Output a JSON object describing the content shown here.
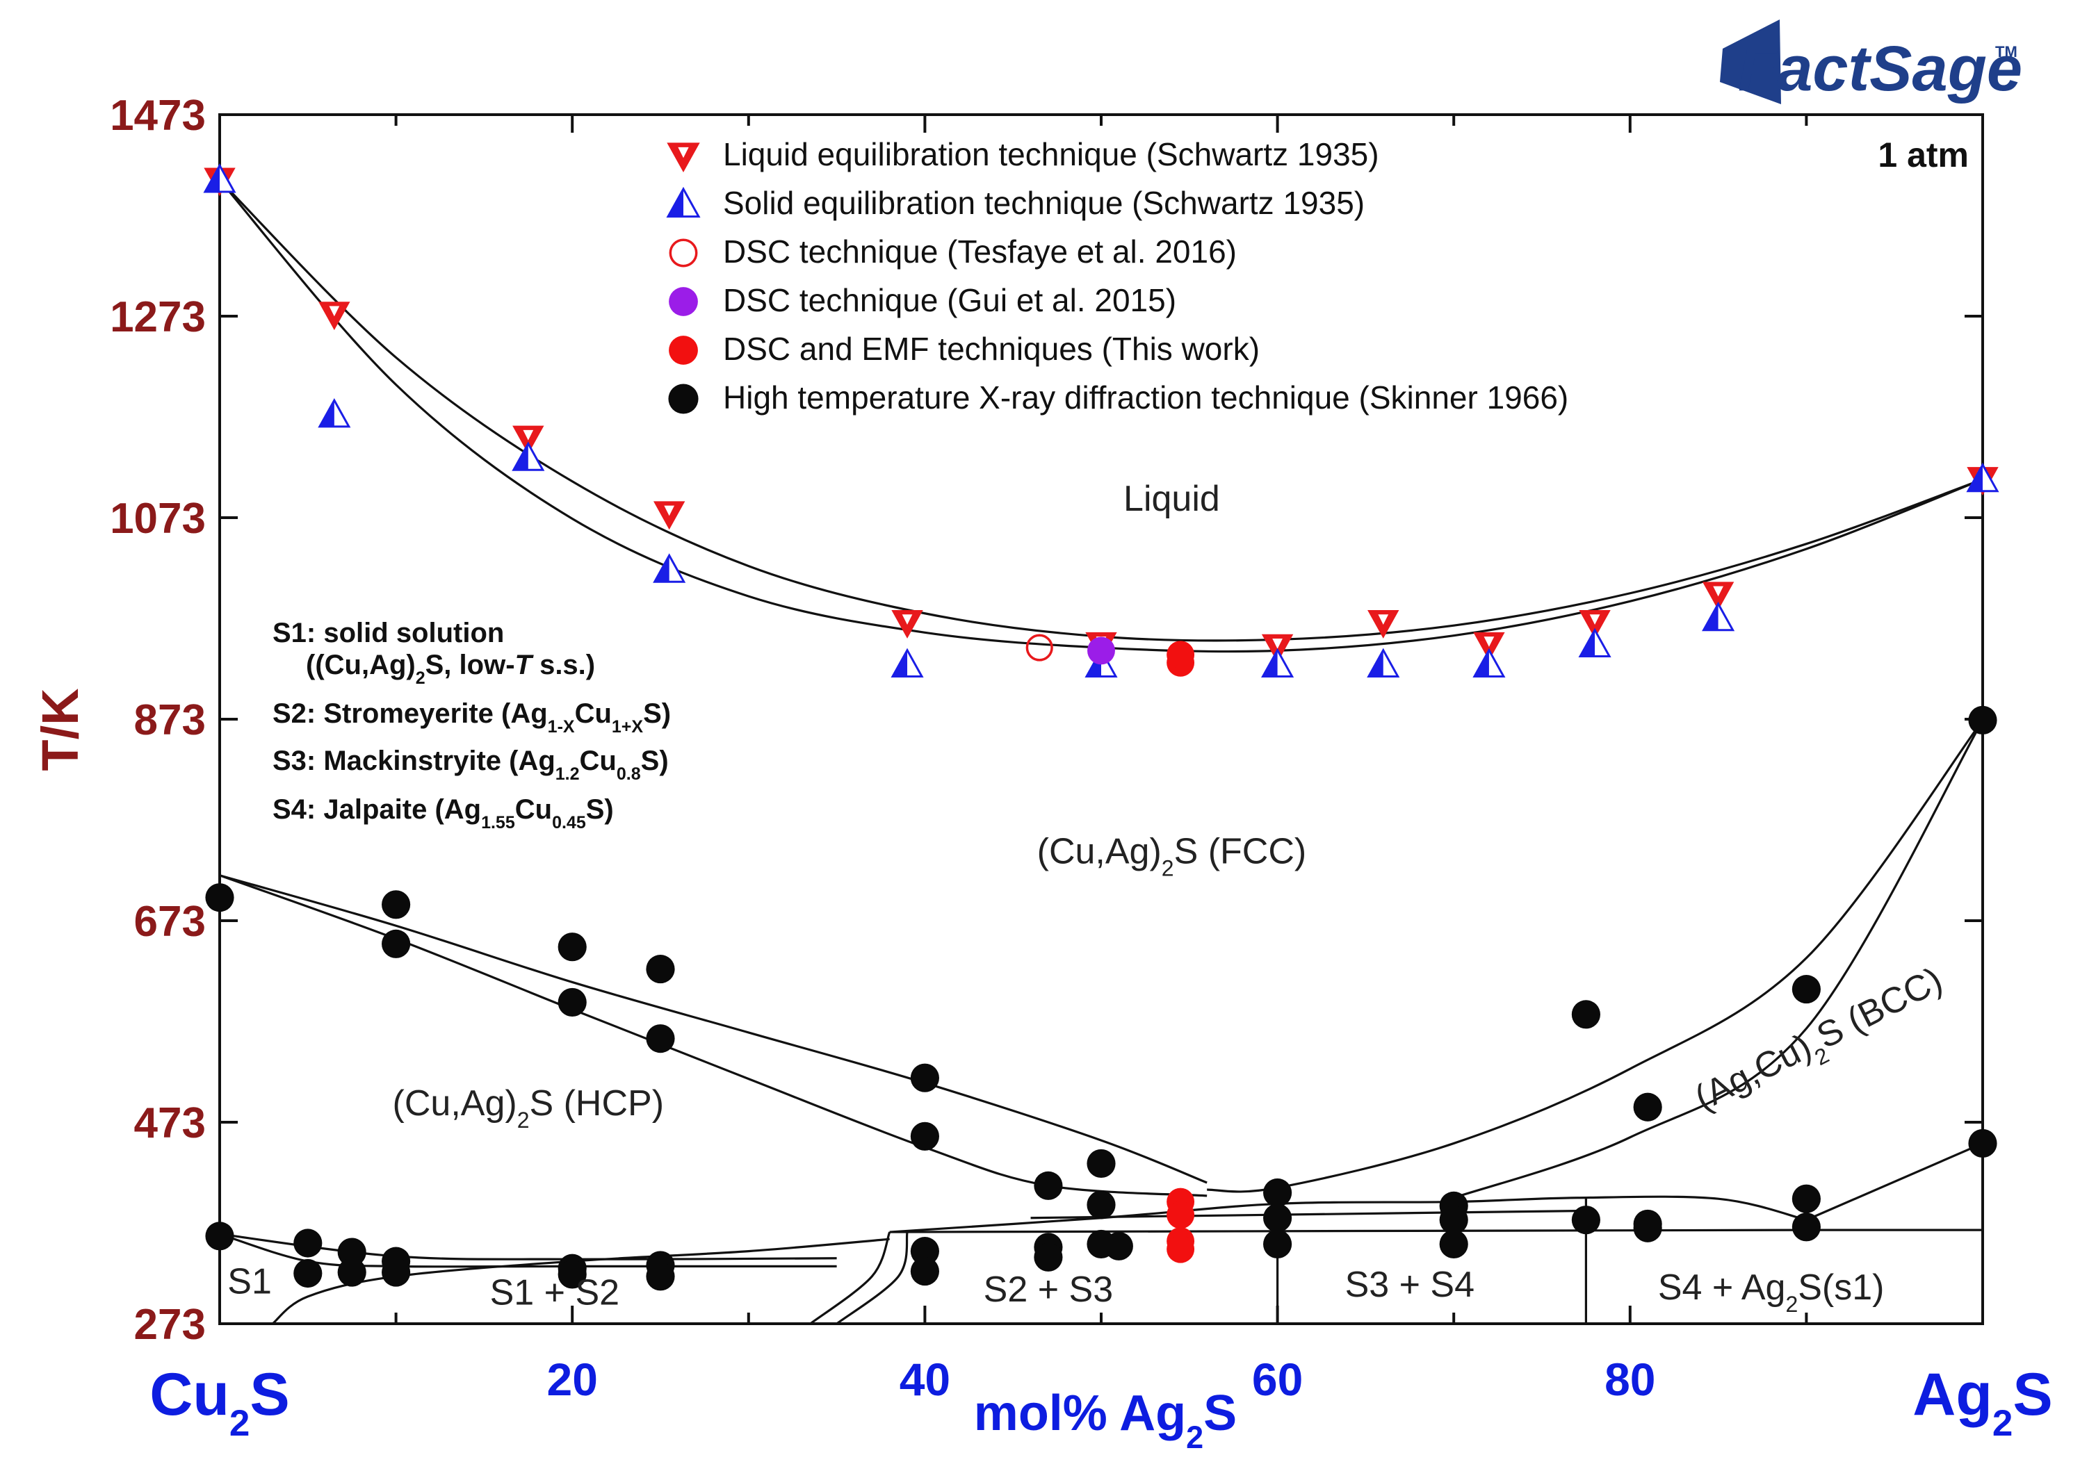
{
  "chart_data": {
    "type": "phase-diagram",
    "pressure": "1 atm",
    "logo": {
      "text": "FactSage",
      "mark": "TM"
    },
    "ylabel": "T/K",
    "ylim": [
      273,
      1473
    ],
    "yticks": [
      273,
      473,
      673,
      873,
      1073,
      1273,
      1473
    ],
    "ytick_labels": [
      "273",
      "473",
      "673",
      "873",
      "1073",
      "1273",
      "1473"
    ],
    "xlim": [
      0,
      100
    ],
    "xtick_labels": [
      {
        "x": 20,
        "label": "20"
      },
      {
        "x": 40,
        "label": "40"
      },
      {
        "x": 60,
        "label": "60"
      },
      {
        "x": 80,
        "label": "80"
      }
    ],
    "xlabel": {
      "prefix": "mol% Ag",
      "sub": "2",
      "suffix": "S"
    },
    "x_left_end": {
      "prefix": "Cu",
      "sub": "2",
      "suffix": "S"
    },
    "x_right_end": {
      "prefix": "Ag",
      "sub": "2",
      "suffix": "S"
    },
    "legend": [
      {
        "marker": "triangle-down-red",
        "label": "Liquid equilibration technique (Schwartz 1935)"
      },
      {
        "marker": "triangle-up-blue",
        "label": "Solid equilibration technique (Schwartz 1935)"
      },
      {
        "marker": "circle-open-red",
        "label": "DSC technique (Tesfaye et al. 2016)"
      },
      {
        "marker": "circle-purple",
        "label": "DSC technique (Gui et al. 2015)"
      },
      {
        "marker": "circle-red",
        "label": "DSC and EMF techniques (This work)"
      },
      {
        "marker": "circle-black",
        "label": "High temperature X-ray diffraction technique (Skinner 1966)"
      }
    ],
    "notes": [
      {
        "parts": [
          {
            "t": "S1: solid solution"
          }
        ]
      },
      {
        "parts": [
          {
            "t": "((Cu,Ag)"
          },
          {
            "t": "2",
            "sub": true
          },
          {
            "t": "S, low-"
          },
          {
            "t": "T",
            "italic": true
          },
          {
            "t": " s.s.)"
          }
        ]
      },
      {
        "parts": [
          {
            "t": "S2: Stromeyerite (Ag"
          },
          {
            "t": "1-X",
            "sub": true
          },
          {
            "t": "Cu"
          },
          {
            "t": "1+X",
            "sub": true
          },
          {
            "t": "S)"
          }
        ]
      },
      {
        "parts": [
          {
            "t": "S3: Mackinstryite (Ag"
          },
          {
            "t": "1.2",
            "sub": true
          },
          {
            "t": "Cu"
          },
          {
            "t": "0.8",
            "sub": true
          },
          {
            "t": "S)"
          }
        ]
      },
      {
        "parts": [
          {
            "t": "S4: Jalpaite (Ag"
          },
          {
            "t": "1.55",
            "sub": true
          },
          {
            "t": "Cu"
          },
          {
            "t": "0.45",
            "sub": true
          },
          {
            "t": "S)"
          }
        ]
      }
    ],
    "regions": [
      {
        "x": 54,
        "y": 1080,
        "parts": [
          {
            "t": "Liquid"
          }
        ]
      },
      {
        "x": 54,
        "y": 730,
        "parts": [
          {
            "t": "(Cu,Ag)"
          },
          {
            "t": "2",
            "sub": true
          },
          {
            "t": "S (FCC)"
          }
        ]
      },
      {
        "x": 17.5,
        "y": 480,
        "parts": [
          {
            "t": "(Cu,Ag)"
          },
          {
            "t": "2",
            "sub": true
          },
          {
            "t": "S (HCP)"
          }
        ]
      },
      {
        "x": 91,
        "y": 545,
        "rotate": -27,
        "parts": [
          {
            "t": "(Ag,Cu)"
          },
          {
            "t": "2",
            "sub": true
          },
          {
            "t": "S (BCC)"
          }
        ]
      },
      {
        "x": 1.7,
        "y": 303,
        "parts": [
          {
            "t": "S1"
          }
        ]
      },
      {
        "x": 19,
        "y": 292,
        "parts": [
          {
            "t": "S1 + S2"
          }
        ]
      },
      {
        "x": 47,
        "y": 295,
        "parts": [
          {
            "t": "S2 + S3"
          }
        ]
      },
      {
        "x": 67.5,
        "y": 300,
        "parts": [
          {
            "t": "S3 + S4"
          }
        ]
      },
      {
        "x": 88,
        "y": 297,
        "parts": [
          {
            "t": "S4 + Ag"
          },
          {
            "t": "2",
            "sub": true
          },
          {
            "t": "S(s1)"
          }
        ]
      }
    ],
    "series": [
      {
        "name": "Liquid equilibration technique (Schwartz 1935)",
        "marker": "triangle-down-red",
        "points": [
          [
            0,
            1408
          ],
          [
            6.5,
            1275
          ],
          [
            17.5,
            1152
          ],
          [
            25.5,
            1077
          ],
          [
            39,
            969
          ],
          [
            50,
            947
          ],
          [
            60,
            945
          ],
          [
            66,
            969
          ],
          [
            72,
            947
          ],
          [
            78,
            969
          ],
          [
            85,
            997
          ],
          [
            100,
            1111
          ]
        ]
      },
      {
        "name": "Solid equilibration technique (Schwartz 1935)",
        "marker": "triangle-up-blue",
        "points": [
          [
            0,
            1408
          ],
          [
            6.5,
            1175
          ],
          [
            17.5,
            1132
          ],
          [
            25.5,
            1021
          ],
          [
            39,
            927
          ],
          [
            50,
            927
          ],
          [
            60,
            927
          ],
          [
            66,
            927
          ],
          [
            72,
            927
          ],
          [
            78,
            947
          ],
          [
            85,
            973
          ],
          [
            100,
            1111
          ]
        ]
      },
      {
        "name": "DSC technique (Tesfaye et al. 2016)",
        "marker": "circle-open-red",
        "points": [
          [
            46.5,
            944
          ]
        ]
      },
      {
        "name": "DSC technique (Gui et al. 2015)",
        "marker": "circle-purple",
        "points": [
          [
            50,
            941
          ]
        ]
      },
      {
        "name": "DSC and EMF techniques (This work)",
        "marker": "circle-red",
        "points": [
          [
            54.5,
            929
          ],
          [
            54.5,
            937
          ],
          [
            54.5,
            394
          ],
          [
            54.5,
            381
          ],
          [
            54.5,
            355
          ],
          [
            54.5,
            347
          ]
        ]
      },
      {
        "name": "High temperature X-ray diffraction technique (Skinner 1966)",
        "marker": "circle-black",
        "points": [
          [
            0,
            696
          ],
          [
            0,
            360
          ],
          [
            5,
            353
          ],
          [
            5,
            323
          ],
          [
            7.5,
            344
          ],
          [
            7.5,
            324
          ],
          [
            10,
            689
          ],
          [
            10,
            650
          ],
          [
            10,
            335
          ],
          [
            10,
            324
          ],
          [
            20,
            647
          ],
          [
            20,
            592
          ],
          [
            20,
            328
          ],
          [
            20,
            322
          ],
          [
            25,
            625
          ],
          [
            25,
            556
          ],
          [
            25,
            331
          ],
          [
            25,
            320
          ],
          [
            40,
            517
          ],
          [
            40,
            459
          ],
          [
            40,
            345
          ],
          [
            40,
            325
          ],
          [
            47,
            410
          ],
          [
            47,
            349
          ],
          [
            47,
            339
          ],
          [
            50,
            432
          ],
          [
            50,
            391
          ],
          [
            50,
            352
          ],
          [
            51,
            350
          ],
          [
            60,
            403
          ],
          [
            60,
            378
          ],
          [
            60,
            352
          ],
          [
            70,
            390
          ],
          [
            70,
            376
          ],
          [
            70,
            352
          ],
          [
            77.5,
            580
          ],
          [
            77.5,
            376
          ],
          [
            81,
            488
          ],
          [
            81,
            372
          ],
          [
            81,
            368
          ],
          [
            90,
            605
          ],
          [
            90,
            397
          ],
          [
            90,
            369
          ],
          [
            100,
            872
          ],
          [
            100,
            452
          ]
        ]
      }
    ],
    "phase_lines": [
      {
        "points": [
          [
            0,
            1408
          ],
          [
            10,
            1232
          ],
          [
            20,
            1109
          ],
          [
            30,
            1025
          ],
          [
            40,
            978
          ],
          [
            50,
            955
          ],
          [
            60,
            952
          ],
          [
            70,
            966
          ],
          [
            80,
            998
          ],
          [
            90,
            1047
          ],
          [
            100,
            1111
          ]
        ]
      },
      {
        "points": [
          [
            0,
            1408
          ],
          [
            10,
            1205
          ],
          [
            20,
            1072
          ],
          [
            30,
            995
          ],
          [
            40,
            959
          ],
          [
            50,
            944
          ],
          [
            60,
            941
          ],
          [
            70,
            956
          ],
          [
            80,
            990
          ],
          [
            90,
            1042
          ],
          [
            100,
            1111
          ]
        ]
      },
      {
        "points": [
          [
            0,
            718
          ],
          [
            10,
            668
          ],
          [
            20,
            612
          ],
          [
            30,
            562
          ],
          [
            40,
            512
          ],
          [
            50,
            455
          ],
          [
            56,
            413
          ]
        ]
      },
      {
        "points": [
          [
            0,
            718
          ],
          [
            10,
            655
          ],
          [
            20,
            585
          ],
          [
            30,
            516
          ],
          [
            40,
            448
          ],
          [
            47,
            410
          ],
          [
            56,
            400
          ]
        ]
      },
      {
        "points": [
          [
            56,
            406
          ],
          [
            60,
            408
          ],
          [
            70,
            452
          ],
          [
            80,
            526
          ],
          [
            90,
            636
          ],
          [
            100,
            872
          ]
        ]
      },
      {
        "points": [
          [
            70,
            398
          ],
          [
            80,
            458
          ],
          [
            90,
            566
          ],
          [
            100,
            872
          ]
        ]
      },
      {
        "points": [
          [
            90,
            376
          ],
          [
            100,
            452
          ]
        ]
      },
      {
        "points": [
          [
            0,
            362
          ],
          [
            10,
            340
          ],
          [
            20,
            337
          ],
          [
            35,
            338
          ]
        ]
      },
      {
        "points": [
          [
            0,
            362
          ],
          [
            5,
            335
          ],
          [
            10,
            330
          ],
          [
            20,
            330
          ],
          [
            35,
            330
          ]
        ]
      },
      {
        "points": [
          [
            3,
            273
          ],
          [
            5,
            300
          ],
          [
            10,
            320
          ],
          [
            20,
            335
          ],
          [
            30,
            345
          ],
          [
            38,
            357
          ]
        ]
      },
      {
        "points": [
          [
            38,
            364
          ],
          [
            50,
            378
          ],
          [
            60,
            392
          ],
          [
            70,
            394
          ],
          [
            77,
            398
          ],
          [
            85,
            397
          ],
          [
            90,
            376
          ]
        ]
      },
      {
        "points": [
          [
            38,
            364
          ],
          [
            90,
            366
          ],
          [
            100,
            366
          ]
        ]
      },
      {
        "points": [
          [
            38,
            364
          ],
          [
            37,
            320
          ],
          [
            33.5,
            273
          ]
        ]
      },
      {
        "points": [
          [
            39,
            364
          ],
          [
            38.5,
            320
          ],
          [
            35,
            273
          ]
        ]
      },
      {
        "points": [
          [
            46,
            378
          ],
          [
            77,
            385
          ]
        ]
      },
      {
        "points": [
          [
            60,
            392
          ],
          [
            60,
            273
          ]
        ]
      },
      {
        "points": [
          [
            77.5,
            398
          ],
          [
            77.5,
            273
          ]
        ]
      }
    ]
  }
}
